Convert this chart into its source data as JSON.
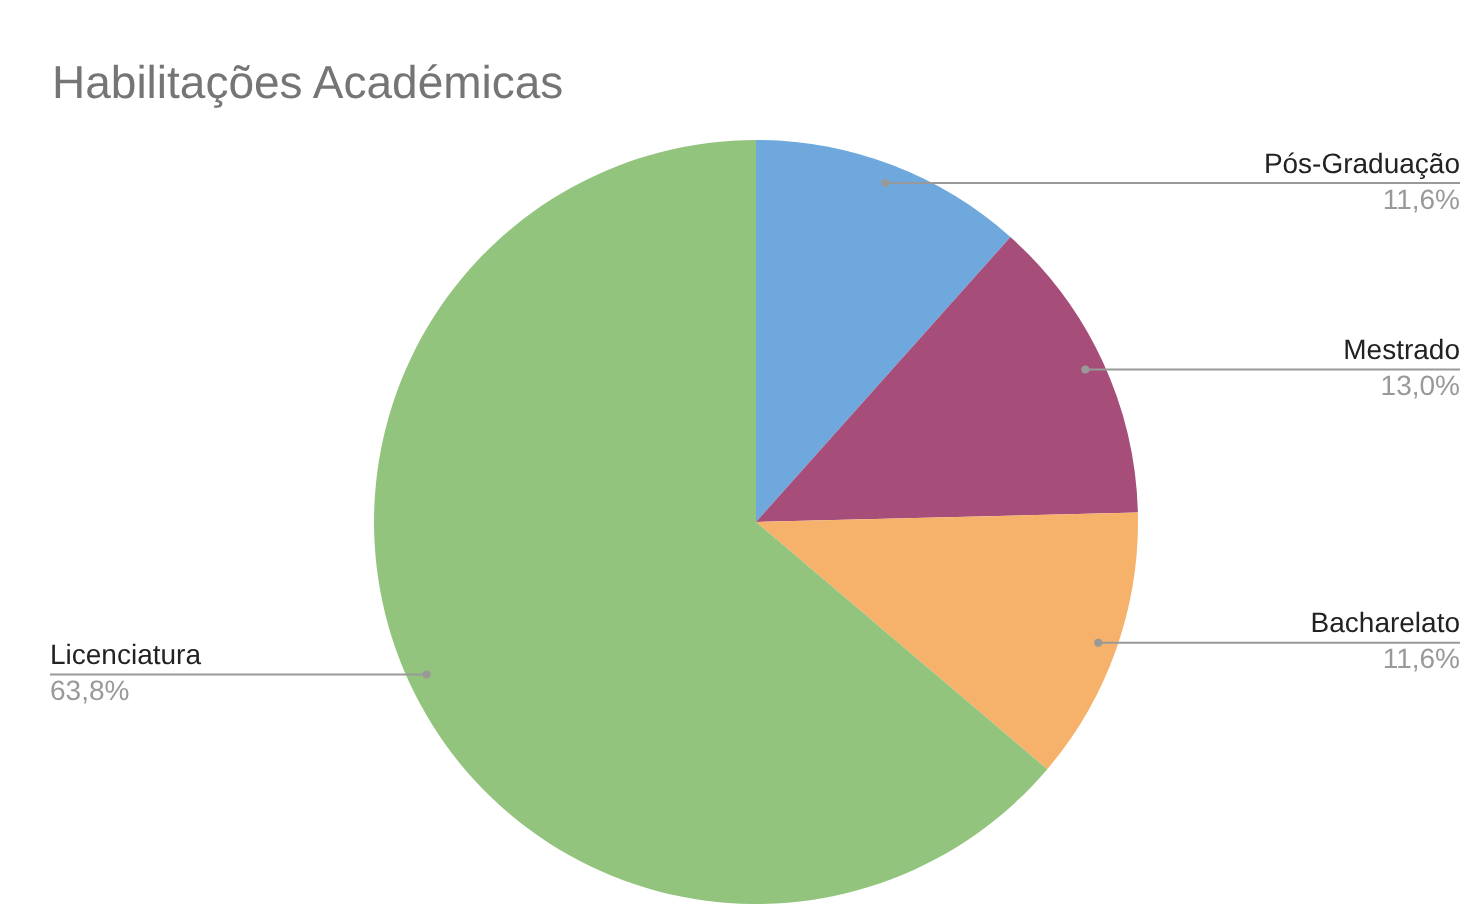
{
  "chart_data": {
    "type": "pie",
    "title": "Habilitações Académicas",
    "categories": [
      "Pós-Graduação",
      "Mestrado",
      "Bacharelato",
      "Licenciatura"
    ],
    "values": [
      11.6,
      13.0,
      11.6,
      63.8
    ],
    "colors": [
      "#6fa8dc",
      "#a64d79",
      "#f6b26b",
      "#93c47d"
    ],
    "value_labels": [
      "11,6%",
      "13,0%",
      "11,6%",
      "63,8%"
    ],
    "legend": false
  }
}
